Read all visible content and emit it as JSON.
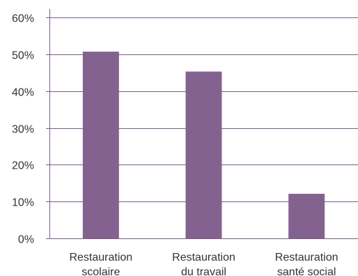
{
  "chart_data": {
    "type": "bar",
    "categories": [
      [
        "Restauration",
        "scolaire"
      ],
      [
        "Restauration",
        "du travail"
      ],
      [
        "Restauration",
        "santé social"
      ]
    ],
    "values": [
      50.7,
      45.3,
      12.1
    ],
    "y_ticks": [
      "0%",
      "10%",
      "20%",
      "30%",
      "40%",
      "50%",
      "60%"
    ],
    "ylim": [
      0,
      60
    ],
    "y_unit": "%",
    "grid": true,
    "title": "",
    "xlabel": "",
    "ylabel": ""
  },
  "colors": {
    "bar": "#84628f",
    "grid": "#7b5a86",
    "axis": "#7b5a86",
    "text": "#333333"
  }
}
